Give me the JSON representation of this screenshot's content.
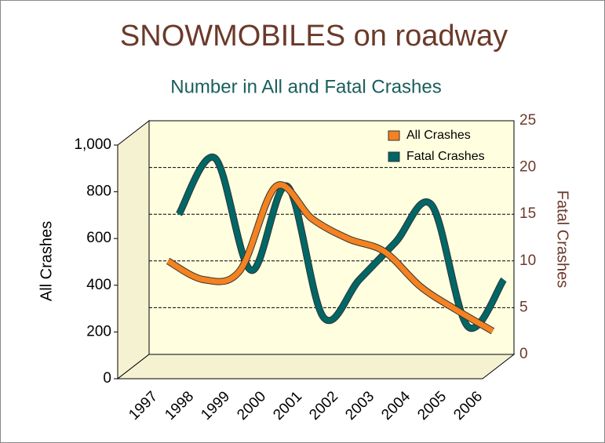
{
  "chart_data": {
    "type": "line",
    "title": "SNOWMOBILES on roadway",
    "subtitle": "Number in All and Fatal Crashes",
    "y_label": "All Crashes",
    "y2_label": "Fatal Crashes",
    "categories": [
      "1997",
      "1998",
      "1999",
      "2000",
      "2001",
      "2002",
      "2003",
      "2004",
      "2005",
      "2006"
    ],
    "series": [
      {
        "name": "All Crashes",
        "color": "#f58220",
        "values": [
          450,
          370,
          410,
          770,
          630,
          545,
          490,
          340,
          240,
          150
        ]
      },
      {
        "name": "Fatal Crashes",
        "color": "#006666",
        "axis": "y2",
        "values": [
          15,
          21,
          9,
          18,
          4,
          8,
          12,
          16,
          3,
          8
        ]
      }
    ],
    "ylim": [
      0,
      1000
    ],
    "yticks": [
      0,
      200,
      400,
      600,
      800,
      {
        "value": 1000,
        "label": "1,000"
      }
    ],
    "y2lim": [
      0,
      25
    ],
    "y2ticks": [
      0,
      5,
      10,
      15,
      20,
      25
    ],
    "grid": true,
    "legend": "top-right"
  }
}
